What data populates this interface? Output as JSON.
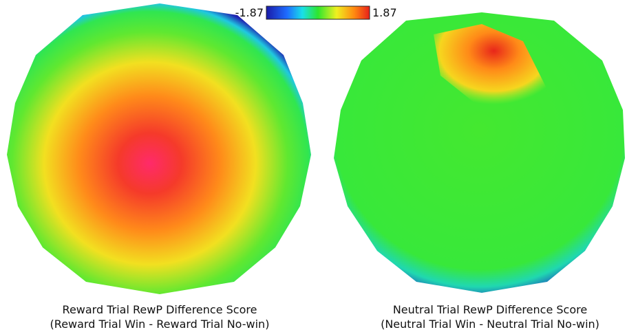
{
  "colorbar": {
    "min": -1.87,
    "max": 1.87
  },
  "maps": [
    {
      "caption": [
        "Reward Trial RewP Difference Score",
        "(Reward Trial Win - Reward Trial No-win)"
      ]
    },
    {
      "caption": [
        "Neutral Trial RewP Difference Score",
        "(Neutral Trial Win - Neutral Trial No-win)"
      ]
    }
  ]
}
